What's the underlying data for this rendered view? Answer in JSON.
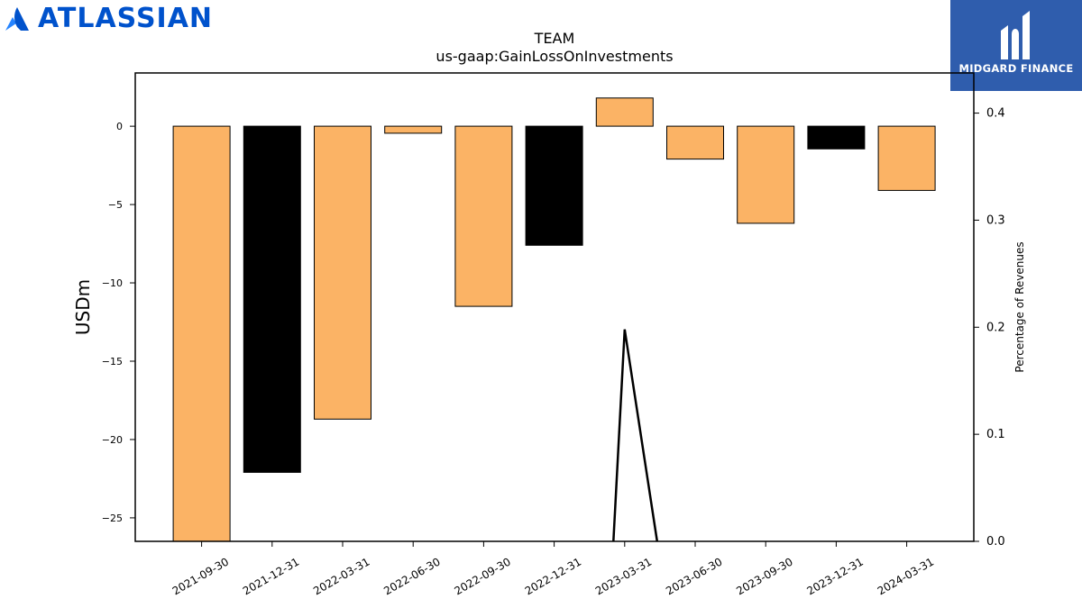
{
  "brand_left": {
    "name": "ATLASSIAN",
    "color": "#0052CC",
    "icon": "atlassian-logo-icon"
  },
  "brand_right": {
    "name": "MIDGARD FINANCE",
    "background": "#2F5DAD",
    "icon": "midgard-logo-icon"
  },
  "chart_data": {
    "type": "bar",
    "title": "TEAM",
    "subtitle": "us-gaap:GainLossOnInvestments",
    "ylabel": "USDm",
    "y2label": "Percentage of Revenues",
    "categories": [
      "2021-09-30",
      "2021-12-31",
      "2022-03-31",
      "2022-06-30",
      "2022-09-30",
      "2022-12-31",
      "2023-03-31",
      "2023-06-30",
      "2023-09-30",
      "2023-12-31",
      "2024-03-31"
    ],
    "values": [
      -26.5,
      -22.1,
      -18.7,
      -0.45,
      -11.5,
      -7.6,
      1.8,
      -2.1,
      -6.2,
      -1.45,
      -4.1
    ],
    "bar_colors": [
      "#FBB365",
      "#000000",
      "#FBB365",
      "#FBB365",
      "#FBB365",
      "#000000",
      "#FBB365",
      "#FBB365",
      "#FBB365",
      "#000000",
      "#FBB365"
    ],
    "ylim": [
      -26.5,
      3.4
    ],
    "yticks": [
      0,
      -5,
      -10,
      -15,
      -20,
      -25
    ],
    "y2lim": [
      0,
      0.4375
    ],
    "y2ticks": [
      0.0,
      0.1,
      0.2,
      0.3,
      0.4
    ],
    "y2tick_labels": [
      "0.0",
      "0.1",
      "0.2",
      "0.3",
      "0.4"
    ],
    "line_series": {
      "x": [
        "2023-03-31"
      ],
      "values": [
        0.198
      ],
      "baseline_x": [
        "2022-12-31",
        "2023-06-30"
      ],
      "color": "#000000"
    },
    "grid": false,
    "legend": "none"
  }
}
